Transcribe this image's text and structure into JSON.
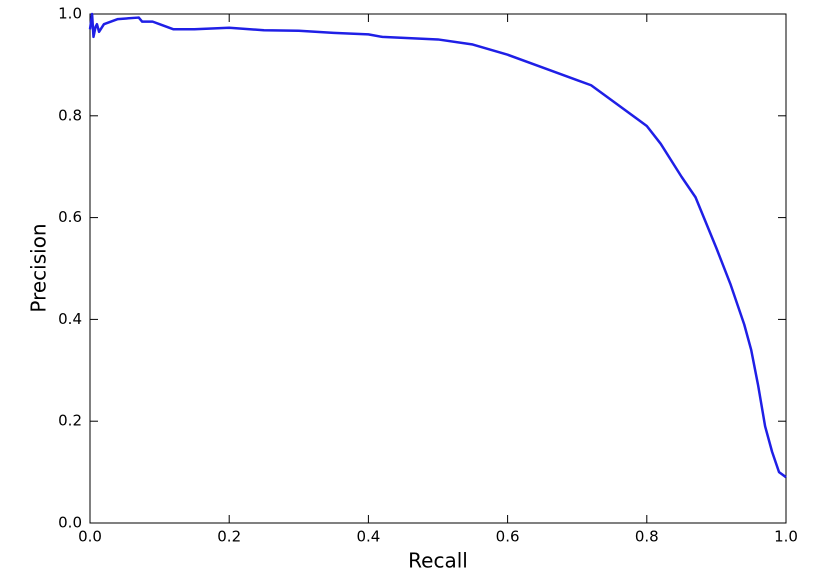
{
  "chart_data": {
    "type": "line",
    "xlabel": "Recall",
    "ylabel": "Precision",
    "x": [
      0,
      0.003,
      0.005,
      0.008,
      0.01,
      0.013,
      0.02,
      0.04,
      0.07,
      0.075,
      0.09,
      0.1,
      0.12,
      0.15,
      0.2,
      0.25,
      0.3,
      0.35,
      0.4,
      0.42,
      0.5,
      0.55,
      0.6,
      0.65,
      0.7,
      0.72,
      0.75,
      0.8,
      0.82,
      0.85,
      0.87,
      0.9,
      0.92,
      0.94,
      0.95,
      0.96,
      0.97,
      0.98,
      0.99,
      1.0
    ],
    "values": [
      0.97,
      1.0,
      0.955,
      0.975,
      0.98,
      0.965,
      0.98,
      0.99,
      0.993,
      0.985,
      0.985,
      0.98,
      0.97,
      0.97,
      0.973,
      0.968,
      0.967,
      0.963,
      0.96,
      0.955,
      0.95,
      0.94,
      0.92,
      0.895,
      0.87,
      0.86,
      0.83,
      0.78,
      0.745,
      0.68,
      0.64,
      0.54,
      0.47,
      0.39,
      0.34,
      0.27,
      0.19,
      0.14,
      0.1,
      0.09
    ],
    "color": "#1f1fe6",
    "xlim": [
      0,
      1
    ],
    "ylim": [
      0,
      1
    ],
    "xticks": [
      {
        "value": 0,
        "label": "0.0"
      },
      0.2,
      0.4,
      0.6,
      0.8,
      {
        "value": 1,
        "label": "1.0"
      }
    ],
    "yticks": [
      {
        "value": 0,
        "label": "0.0"
      },
      0.2,
      0.4,
      0.6,
      0.8,
      {
        "value": 1,
        "label": "1.0"
      }
    ],
    "grid": false
  }
}
